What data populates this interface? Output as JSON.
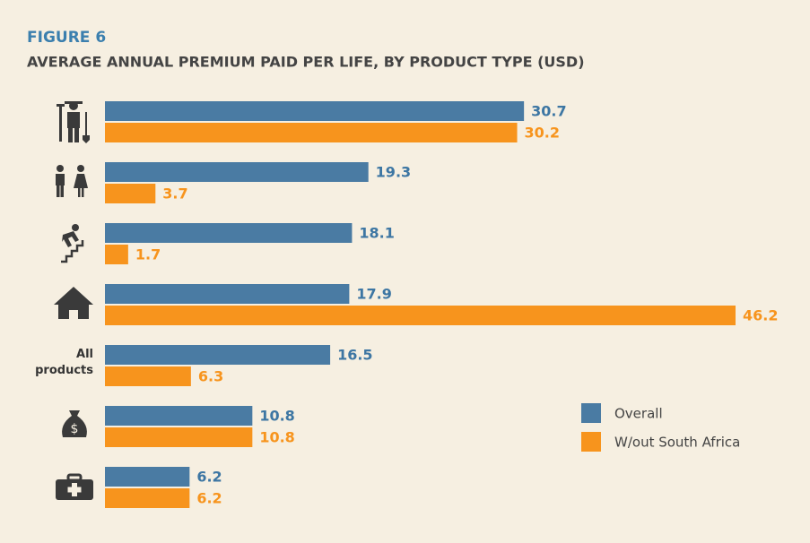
{
  "chart_data": {
    "type": "hbar",
    "title": "FIGURE 6",
    "subtitle": "AVERAGE ANNUAL PREMIUM PAID PER LIFE, BY PRODUCT TYPE (USD)",
    "categories": [
      null,
      null,
      null,
      null,
      "All products",
      null,
      null
    ],
    "series": [
      {
        "name": "Overall",
        "color": "#4a7ba3",
        "values": [
          30.7,
          19.3,
          18.1,
          17.9,
          16.5,
          10.8,
          6.2
        ]
      },
      {
        "name": "W/out South Africa",
        "color": "#f7941d",
        "values": [
          30.2,
          3.7,
          1.7,
          46.2,
          6.3,
          10.8,
          6.2
        ]
      }
    ],
    "legend": "right"
  }
}
